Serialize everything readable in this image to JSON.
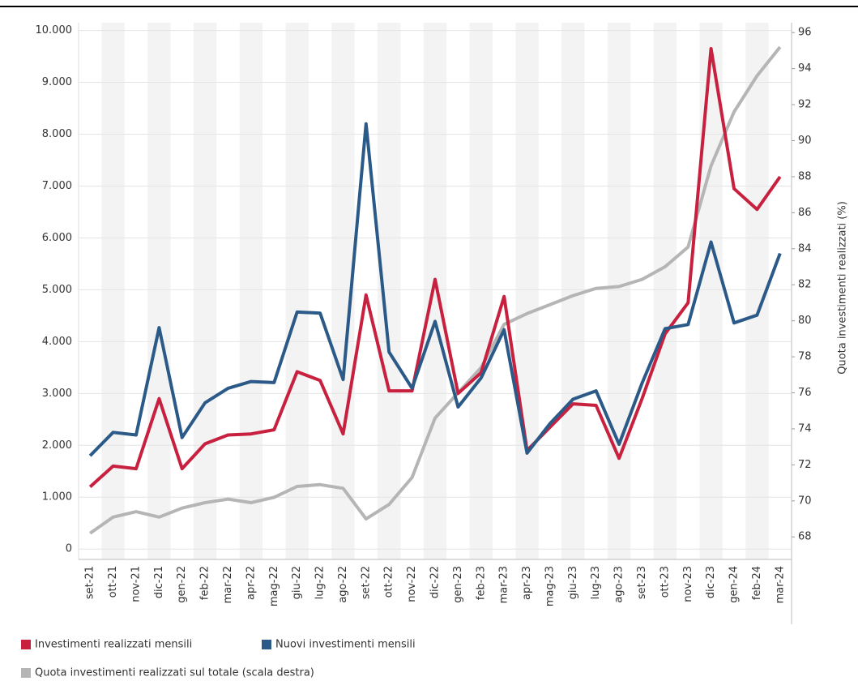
{
  "chart_data": {
    "type": "line",
    "y2label": "Quota investimenti realizzati (%)",
    "categories": [
      "set-21",
      "ott-21",
      "nov-21",
      "dic-21",
      "gen-22",
      "feb-22",
      "mar-22",
      "apr-22",
      "mag-22",
      "giu-22",
      "lug-22",
      "ago-22",
      "set-22",
      "ott-22",
      "nov-22",
      "dic-22",
      "gen-23",
      "feb-23",
      "mar-23",
      "apr-23",
      "mag-23",
      "giu-23",
      "lug-23",
      "ago-23",
      "set-23",
      "ott-23",
      "nov-23",
      "dic-23",
      "gen-24",
      "feb-24",
      "mar-24"
    ],
    "series": [
      {
        "name": "Investimenti realizzati mensili",
        "color": "#c8203f",
        "values": [
          1200,
          1600,
          1550,
          2900,
          1550,
          2030,
          2200,
          2220,
          2300,
          3420,
          3250,
          2220,
          4900,
          3050,
          3050,
          5200,
          3000,
          3400,
          4870,
          1900,
          2350,
          2800,
          2770,
          1750,
          2900,
          4150,
          4750,
          9650,
          6950,
          6550,
          7180
        ]
      },
      {
        "name": "Nuovi investimenti mensili",
        "color": "#2b5a88",
        "values": [
          1800,
          2250,
          2200,
          4270,
          2150,
          2820,
          3100,
          3230,
          3210,
          4570,
          4550,
          3270,
          8200,
          3800,
          3100,
          4390,
          2740,
          3300,
          4230,
          1850,
          2420,
          2890,
          3050,
          2020,
          3200,
          4250,
          4330,
          5920,
          4360,
          4510,
          5700
        ]
      },
      {
        "name": "Quota investimenti realizzati sul totale (scala destra)",
        "color": "#b5b5b5",
        "axis": "y2",
        "values": [
          68.2,
          69.1,
          69.4,
          69.1,
          69.6,
          69.9,
          70.1,
          69.9,
          70.2,
          70.8,
          70.9,
          70.7,
          69.0,
          69.8,
          71.3,
          74.6,
          76.0,
          77.4,
          79.8,
          80.4,
          80.9,
          81.4,
          81.8,
          81.9,
          82.3,
          83.0,
          84.1,
          88.6,
          91.6,
          93.6,
          95.2
        ]
      }
    ],
    "ylim": [
      -200,
      10150
    ],
    "yticks": [
      0,
      {
        "value": 1000,
        "label": "1.000"
      },
      {
        "value": 2000,
        "label": "2.000"
      },
      {
        "value": 3000,
        "label": "3.000"
      },
      {
        "value": 4000,
        "label": "4.000"
      },
      {
        "value": 5000,
        "label": "5.000"
      },
      {
        "value": 6000,
        "label": "6.000"
      },
      {
        "value": 7000,
        "label": "7.000"
      },
      {
        "value": 8000,
        "label": "8.000"
      },
      {
        "value": 9000,
        "label": "9.000"
      },
      {
        "value": 10000,
        "label": "10.000"
      }
    ],
    "y2lim": [
      66.75,
      96.55
    ],
    "y2ticks": [
      68,
      70,
      72,
      74,
      76,
      78,
      80,
      82,
      84,
      86,
      88,
      90,
      92,
      94,
      96
    ],
    "grid": true
  }
}
